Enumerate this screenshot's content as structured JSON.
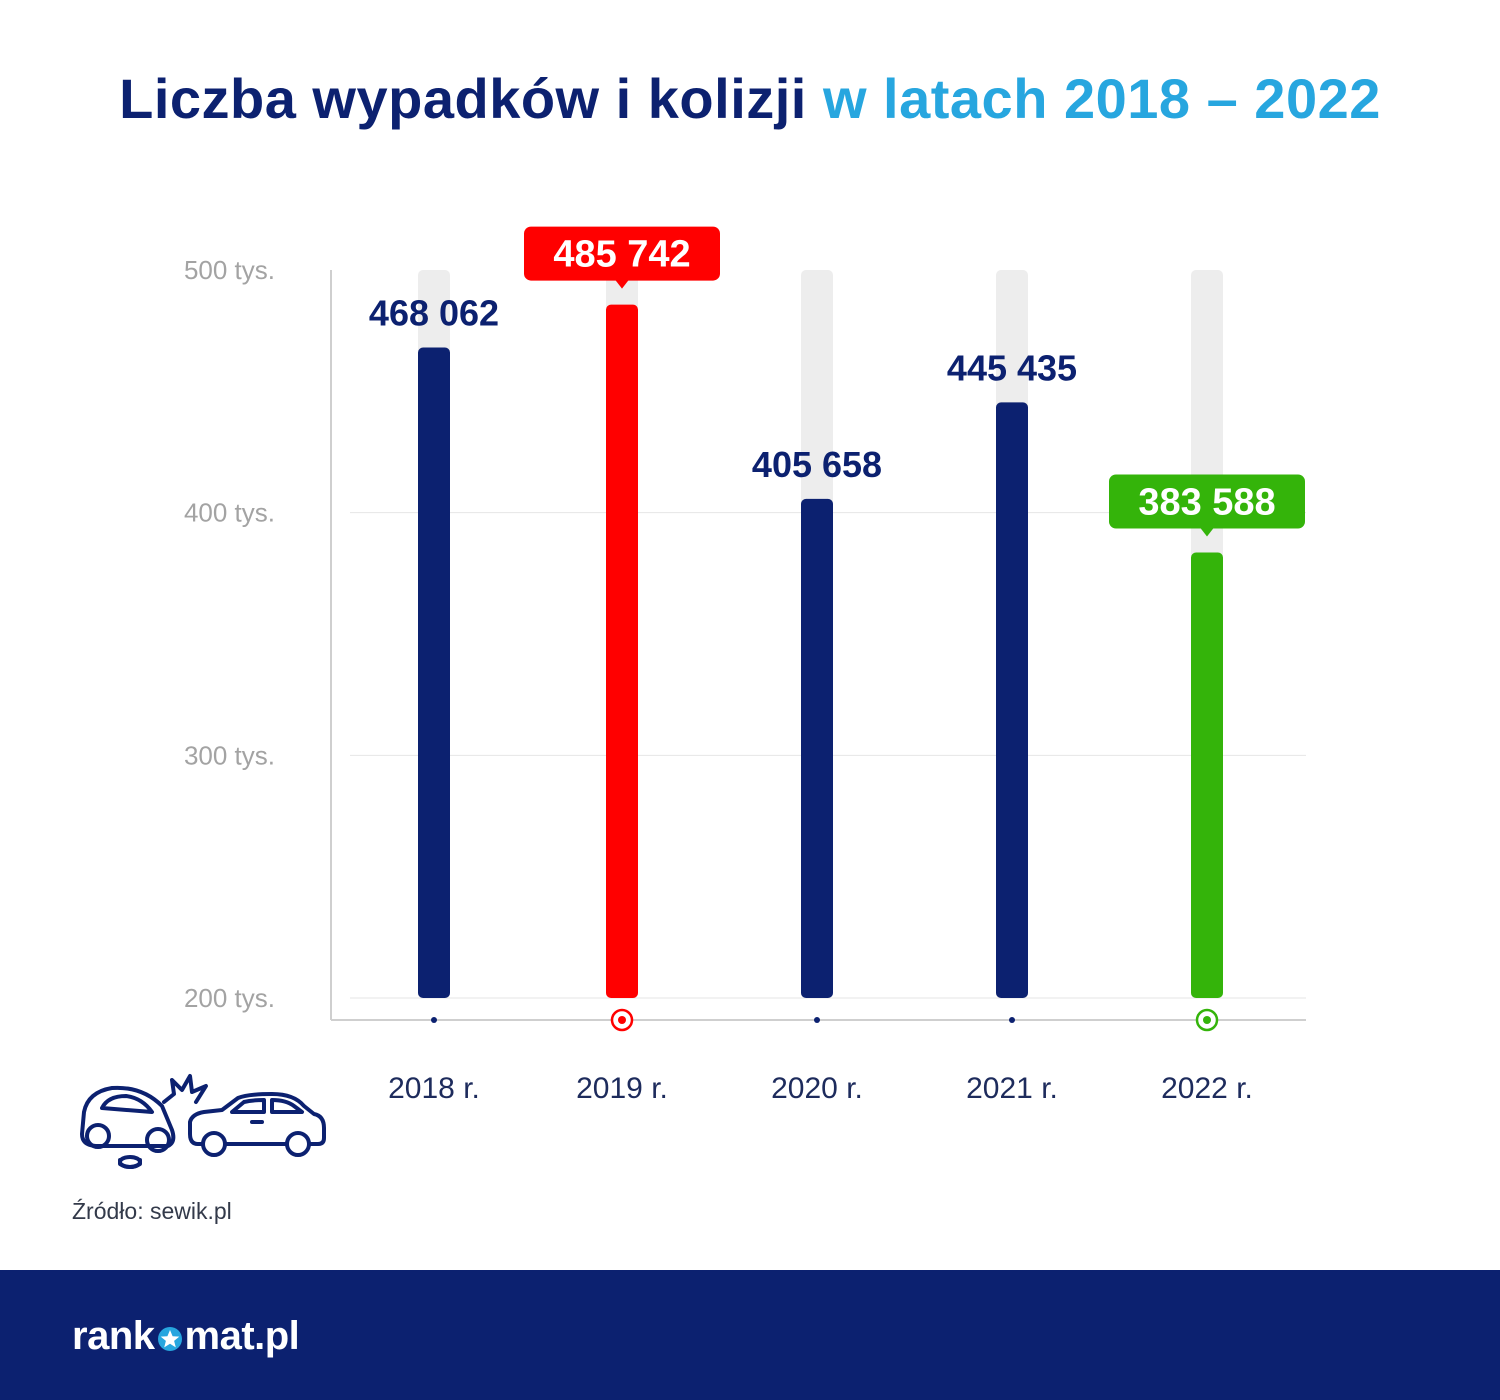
{
  "title": {
    "part1": "Liczba wypadków i kolizji",
    "part2": "w latach 2018 – 2022"
  },
  "chart_data": {
    "type": "bar",
    "categories": [
      "2018 r.",
      "2019 r.",
      "2020 r.",
      "2021 r.",
      "2022 r."
    ],
    "values": [
      468062,
      485742,
      405658,
      445435,
      383588
    ],
    "value_labels": [
      "468 062",
      "485 742",
      "405 658",
      "445 435",
      "383 588"
    ],
    "highlight": [
      "none",
      "max",
      "none",
      "none",
      "min"
    ],
    "yticks": [
      200000,
      300000,
      400000,
      500000
    ],
    "ytick_labels": [
      "200 tys.",
      "300 tys.",
      "400 tys.",
      "500 tys."
    ],
    "ylim": [
      200000,
      500000
    ],
    "grid": true,
    "colors": {
      "default": "#0c2170",
      "max": "#ff0000",
      "min": "#34b40a",
      "track": "#ededed",
      "grid": "#e6e6e6",
      "axis": "#cfcfcf",
      "tick_text": "#a3a3a3",
      "category_text": "#1d2b5c"
    }
  },
  "source": "Źródło: sewik.pl",
  "icon": "car-crash-icon",
  "logo": {
    "left": "rank",
    "right": "mat.pl",
    "icon": "star-o-icon"
  }
}
